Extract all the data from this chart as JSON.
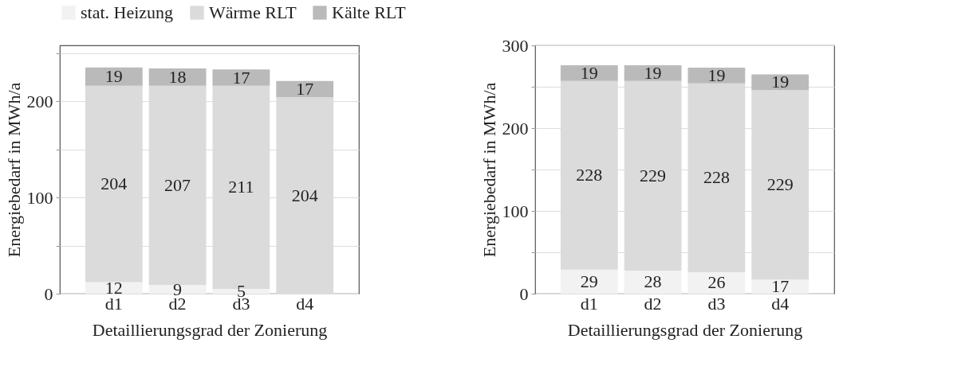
{
  "chart_data": [
    {
      "type": "bar",
      "stacked": true,
      "categories": [
        "d1",
        "d2",
        "d3",
        "d4"
      ],
      "xlabel": "Detaillierungsgrad der Zonierung",
      "ylabel": "Energiebedarf in MWh/a",
      "ylim": [
        0,
        258
      ],
      "yticks": [
        0,
        {
          "value": 50,
          "label": null
        },
        100,
        {
          "value": 150,
          "label": null
        },
        200,
        {
          "value": 250,
          "label": null
        }
      ],
      "grid": "y",
      "legend": "top",
      "series": [
        {
          "name": "stat. Heizung",
          "color": "#f2f2f2",
          "values": [
            12,
            9,
            5,
            0
          ],
          "value_labels": [
            "12",
            "9",
            "5",
            null
          ]
        },
        {
          "name": "Wärme RLT",
          "color": "#dbdbdb",
          "values": [
            204,
            207,
            211,
            204
          ],
          "value_labels": [
            "204",
            "207",
            "211",
            "204"
          ]
        },
        {
          "name": "Kälte RLT",
          "color": "#bababa",
          "values": [
            19,
            18,
            17,
            17
          ],
          "value_labels": [
            "19",
            "18",
            "17",
            "17"
          ]
        }
      ]
    },
    {
      "type": "bar",
      "stacked": true,
      "categories": [
        "d1",
        "d2",
        "d3",
        "d4"
      ],
      "xlabel": "Detaillierungsgrad der Zonierung",
      "ylabel": "Energiebedarf in MWh/a",
      "ylim": [
        0,
        300
      ],
      "yticks": [
        0,
        {
          "value": 50,
          "label": null
        },
        100,
        {
          "value": 150,
          "label": null
        },
        200,
        {
          "value": 250,
          "label": null
        },
        300
      ],
      "grid": "y",
      "legend": "top",
      "data_labels": true,
      "series": [
        {
          "name": "stat. Heizung",
          "color": "#f2f2f2",
          "values": [
            29,
            28,
            26,
            17
          ]
        },
        {
          "name": "Wärme RLT",
          "color": "#dbdbdb",
          "values": [
            228,
            229,
            228,
            229
          ]
        },
        {
          "name": "Kälte RLT",
          "color": "#bababa",
          "values": [
            19,
            19,
            19,
            19
          ]
        }
      ]
    }
  ]
}
